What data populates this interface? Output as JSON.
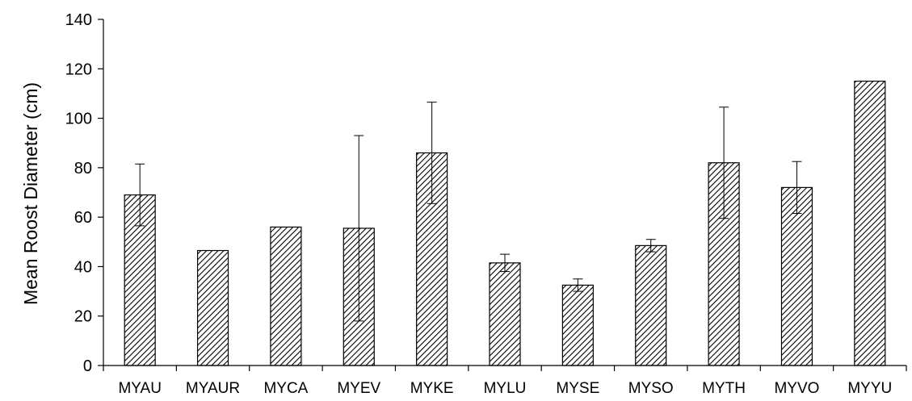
{
  "chart_data": {
    "type": "bar",
    "title": "",
    "xlabel": "",
    "ylabel": "Mean Roost Diameter (cm)",
    "ylim": [
      0,
      140
    ],
    "yticks": [
      0,
      20,
      40,
      60,
      80,
      100,
      120,
      140
    ],
    "grid": false,
    "legend": "none",
    "bar_fill": "diagonal hatch",
    "colors": {
      "bar_stroke": "#000000",
      "hatch": "#000000",
      "background": "#ffffff"
    },
    "categories": [
      "MYAU",
      "MYAUR",
      "MYCA",
      "MYEV",
      "MYKE",
      "MYLU",
      "MYSE",
      "MYSO",
      "MYTH",
      "MYVO",
      "MYYU"
    ],
    "values": [
      69,
      46.5,
      56,
      55.5,
      86,
      41.5,
      32.5,
      48.5,
      82,
      72,
      115
    ],
    "error": [
      12.5,
      null,
      null,
      37.5,
      20.5,
      3.5,
      2.5,
      2.5,
      22.5,
      10.5,
      null
    ]
  }
}
